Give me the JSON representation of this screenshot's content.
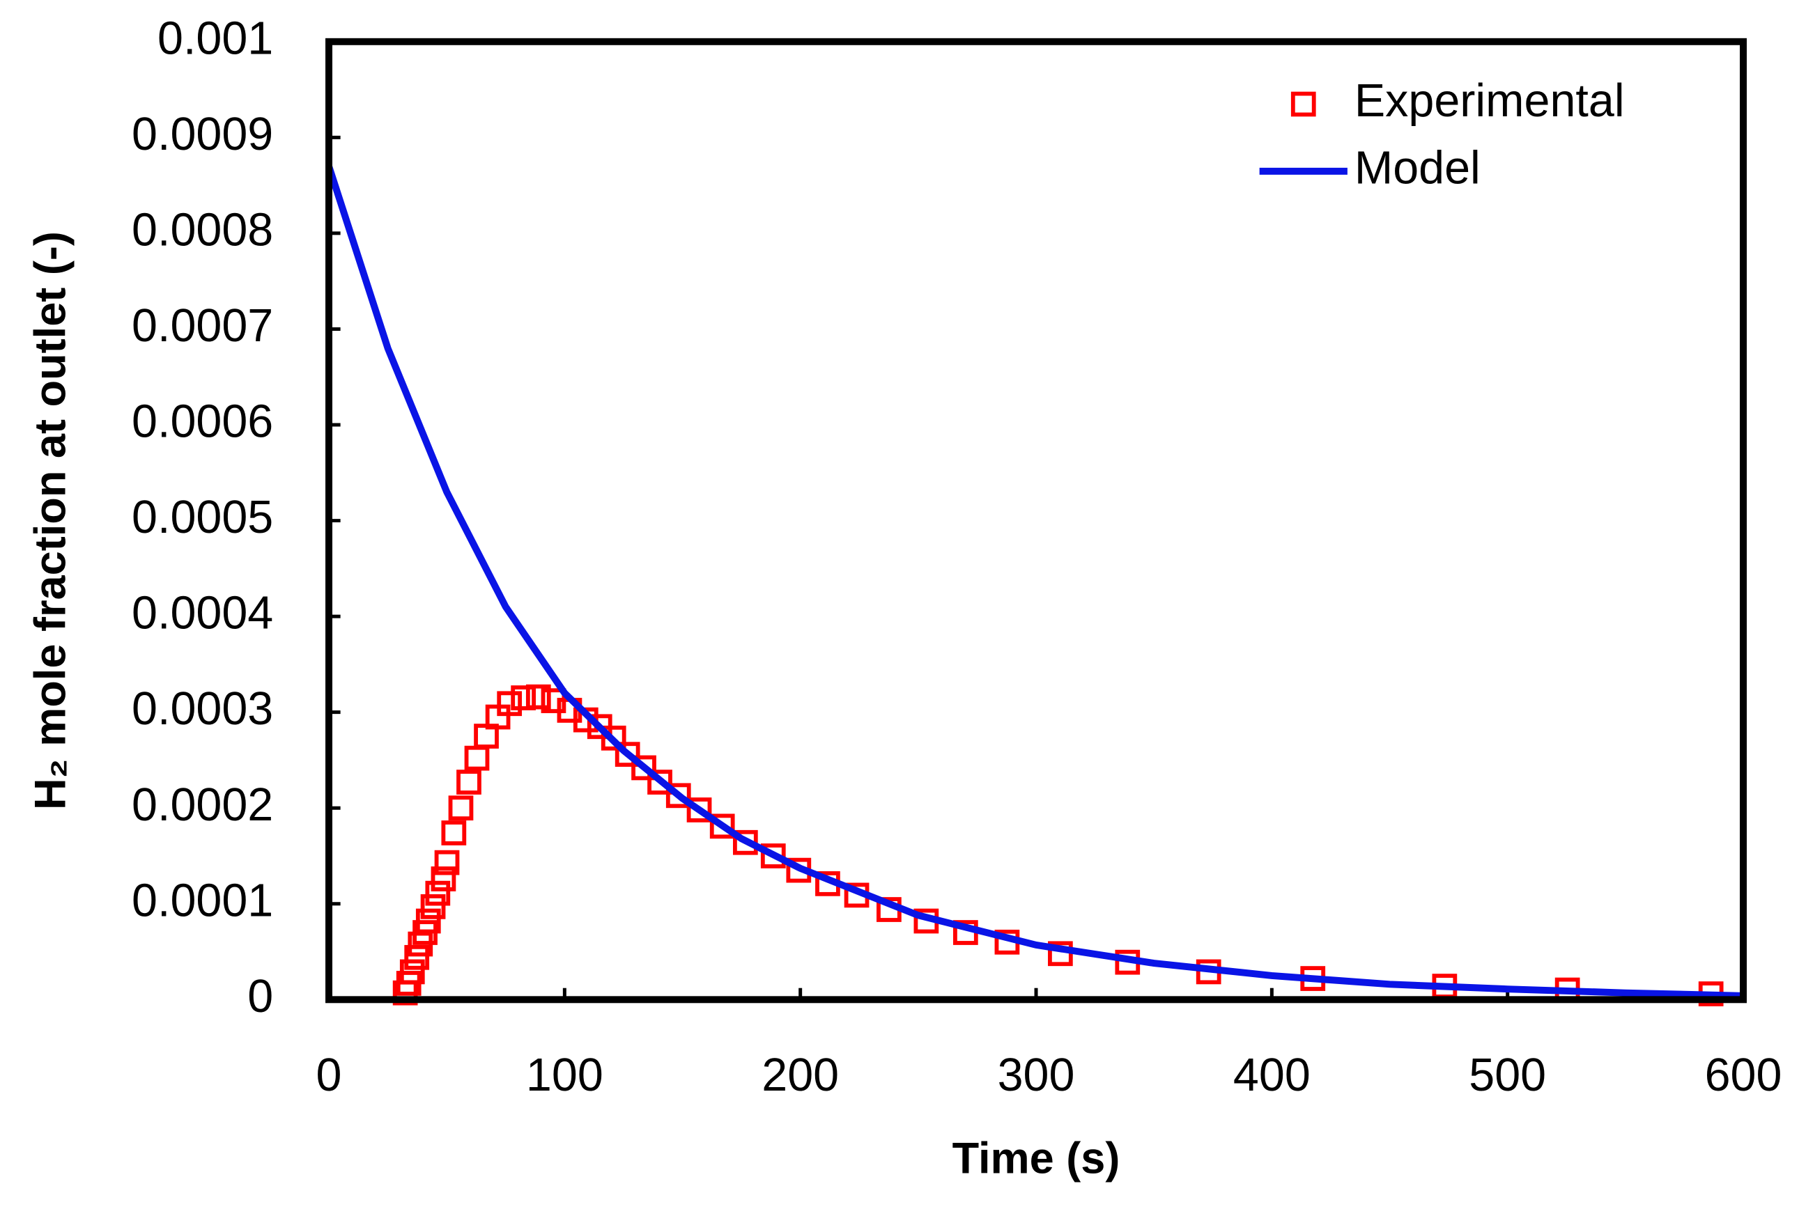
{
  "chart_data": {
    "type": "scatter-line",
    "xlabel": "Time (s)",
    "ylabel": "H₂ mole fraction at outlet (-)",
    "xlim": [
      0,
      600
    ],
    "xticks": [
      0,
      100,
      200,
      300,
      400,
      500,
      600
    ],
    "ylim": [
      0,
      0.001
    ],
    "yticks": [
      0,
      0.0001,
      0.0002,
      0.0003,
      0.0004,
      0.0005,
      0.0006,
      0.0007,
      0.0008,
      0.0009,
      0.001
    ],
    "legend": "upper right",
    "series": [
      {
        "name": "Experimental",
        "kind": "markers",
        "color": "#ff0000",
        "x": [
          32.4,
          33.9,
          35.4,
          37.3,
          38.8,
          40.8,
          42.2,
          44.2,
          46.2,
          48.6,
          50.1,
          53.0,
          56.0,
          59.4,
          62.8,
          66.8,
          71.7,
          76.6,
          82.5,
          88.9,
          95.3,
          102.1,
          109.0,
          114.9,
          120.8,
          126.7,
          133.6,
          140.4,
          148.3,
          157.1,
          166.9,
          176.7,
          188.5,
          199.3,
          211.6,
          223.9,
          237.6,
          253.4,
          270.1,
          287.7,
          310.3,
          338.8,
          373.2,
          417.4,
          473.3,
          525.4,
          586.3
        ],
        "values": [
          7e-06,
          1.7e-05,
          2.9e-05,
          4.4e-05,
          5.8e-05,
          7e-05,
          8.2e-05,
          9.7e-05,
          0.000111,
          0.000126,
          0.000143,
          0.000174,
          0.0002,
          0.000227,
          0.000252,
          0.000275,
          0.000295,
          0.000309,
          0.000315,
          0.000316,
          0.000312,
          0.000302,
          0.000292,
          0.000285,
          0.000273,
          0.000256,
          0.000242,
          0.000227,
          0.000213,
          0.000198,
          0.000181,
          0.000164,
          0.00015,
          0.000135,
          0.000121,
          0.000109,
          9.4e-05,
          8.2e-05,
          7e-05,
          6e-05,
          4.8e-05,
          3.9e-05,
          2.9e-05,
          2.2e-05,
          1.4e-05,
          1e-05,
          6e-06
        ]
      },
      {
        "name": "Model",
        "kind": "line",
        "color": "#0a14e6",
        "x": [
          0,
          25,
          50,
          75,
          100,
          125,
          150,
          175,
          200,
          250,
          300,
          350,
          400,
          450,
          500,
          550,
          600
        ],
        "values": [
          0.00087,
          0.00068,
          0.00053,
          0.00041,
          0.00032,
          0.00026,
          0.00021,
          0.000168,
          0.000137,
          8.8e-05,
          5.7e-05,
          3.8e-05,
          2.5e-05,
          1.6e-05,
          1.1e-05,
          7e-06,
          4e-06
        ]
      }
    ]
  }
}
